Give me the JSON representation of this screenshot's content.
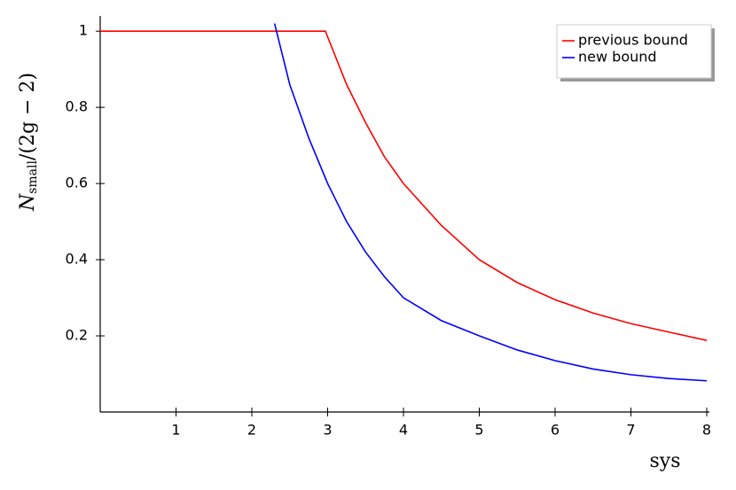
{
  "chart_data": {
    "type": "line",
    "xlabel": "sys",
    "ylabel": [
      "N",
      "small",
      "/(2g − 2)"
    ],
    "xlim": [
      0,
      8
    ],
    "ylim": [
      0,
      1.04
    ],
    "xticks": [
      1,
      2,
      3,
      4,
      5,
      6,
      7,
      8
    ],
    "yticks": [
      0.2,
      0.4,
      0.6,
      0.8,
      1
    ],
    "legend": "upper right",
    "series": [
      {
        "name": "previous bound",
        "color": "#ff0000",
        "x": [
          0,
          2.97,
          3.25,
          3.5,
          3.75,
          4,
          4.5,
          5,
          5.5,
          6,
          6.5,
          7,
          7.5,
          8
        ],
        "values": [
          1,
          1,
          0.86,
          0.76,
          0.67,
          0.6,
          0.49,
          0.4,
          0.34,
          0.295,
          0.26,
          0.232,
          0.21,
          0.188
        ]
      },
      {
        "name": "new bound",
        "color": "#0000ff",
        "x": [
          2.3,
          2.5,
          2.75,
          3,
          3.25,
          3.5,
          3.75,
          4,
          4.5,
          5,
          5.5,
          6,
          6.5,
          7,
          7.5,
          8
        ],
        "values": [
          1.02,
          0.86,
          0.72,
          0.6,
          0.5,
          0.42,
          0.355,
          0.3,
          0.24,
          0.2,
          0.163,
          0.135,
          0.113,
          0.098,
          0.088,
          0.082
        ]
      }
    ]
  }
}
